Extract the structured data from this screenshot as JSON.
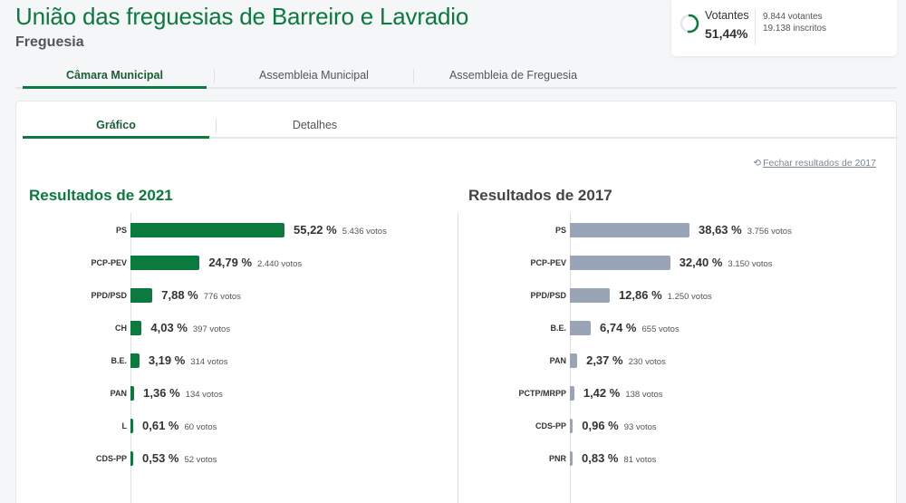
{
  "header": {
    "title": "União das freguesias de Barreiro e Lavradio",
    "subtitle": "Freguesia"
  },
  "voters": {
    "label": "Votantes",
    "percent": "51,44%",
    "percent_value": 51.44,
    "voters_count": "9.844 votantes",
    "registered": "19.138 inscritos",
    "ring_color": "#0b7a3e"
  },
  "top_tabs": [
    {
      "label": "Câmara Municipal",
      "active": true
    },
    {
      "label": "Assembleia Municipal",
      "active": false
    },
    {
      "label": "Assembleia de Freguesia",
      "active": false
    }
  ],
  "inner_tabs": [
    {
      "label": "Gráfico",
      "active": true
    },
    {
      "label": "Detalhes",
      "active": false
    }
  ],
  "close_results_label": "Fechar resultados de 2017",
  "colors": {
    "primary": "#0b7a3e",
    "previous": "#9aa4b7"
  },
  "chart_data": [
    {
      "type": "bar",
      "title": "Resultados de 2021",
      "categories": [
        "PS",
        "PCP-PEV",
        "PPD/PSD",
        "CH",
        "B.E.",
        "PAN",
        "L",
        "CDS-PP"
      ],
      "values": [
        55.22,
        24.79,
        7.88,
        4.03,
        3.19,
        1.36,
        0.61,
        0.53
      ],
      "labels": [
        "55,22 %",
        "24,79 %",
        "7,88 %",
        "4,03 %",
        "3,19 %",
        "1,36 %",
        "0,61 %",
        "0,53 %"
      ],
      "votes": [
        "5.436 votos",
        "2.440 votos",
        "776 votos",
        "397 votos",
        "314 votos",
        "134 votos",
        "60 votos",
        "52 votos"
      ],
      "color": "#0b7a3e"
    },
    {
      "type": "bar",
      "title": "Resultados de 2017",
      "categories": [
        "PS",
        "PCP-PEV",
        "PPD/PSD",
        "B.E.",
        "PAN",
        "PCTP/MRPP",
        "CDS-PP",
        "PNR"
      ],
      "values": [
        38.63,
        32.4,
        12.86,
        6.74,
        2.37,
        1.42,
        0.96,
        0.83
      ],
      "labels": [
        "38,63 %",
        "32,40 %",
        "12,86 %",
        "6,74 %",
        "2,37 %",
        "1,42 %",
        "0,96 %",
        "0,83 %"
      ],
      "votes": [
        "3.756 votos",
        "3.150 votos",
        "1.250 votos",
        "655 votos",
        "230 votos",
        "138 votos",
        "93 votos",
        "81 votos"
      ],
      "color": "#9aa4b7"
    }
  ]
}
